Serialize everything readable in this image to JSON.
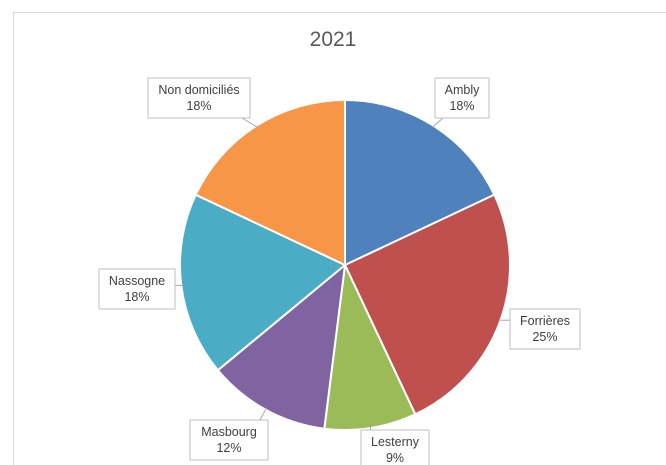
{
  "chart_data": {
    "type": "pie",
    "title": "2021",
    "categories": [
      "Ambly",
      "Forrières",
      "Lesterny",
      "Masbourg",
      "Nassogne",
      "Non domiciliés"
    ],
    "values": [
      18,
      25,
      9,
      12,
      18,
      18
    ],
    "labels": [
      "18%",
      "25%",
      "9%",
      "12%",
      "18%",
      "18%"
    ],
    "colors": [
      "#4f81bd",
      "#c0504d",
      "#9bbb59",
      "#8064a2",
      "#4bacc6",
      "#f79646"
    ],
    "start_angle_deg": 0,
    "direction": "clockwise",
    "legend": "none"
  }
}
